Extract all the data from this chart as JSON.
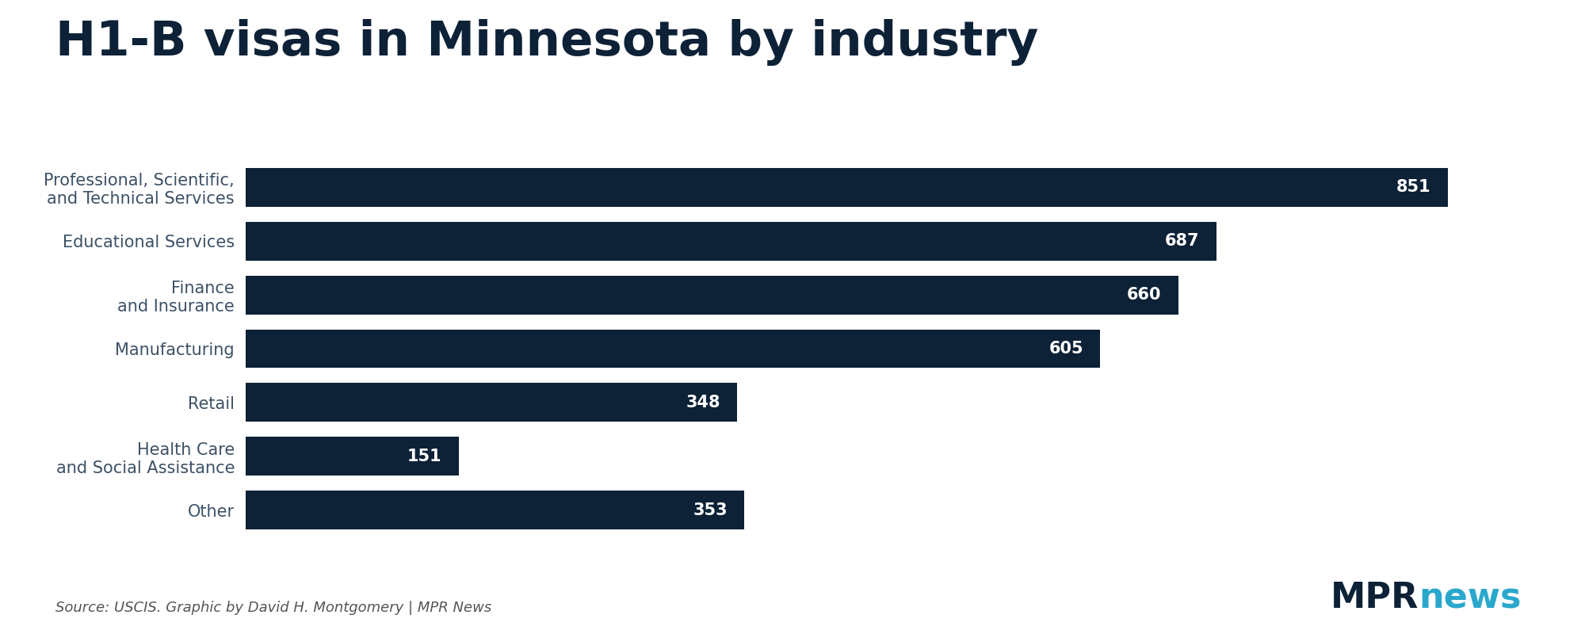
{
  "title": "H1-B visas in Minnesota by industry",
  "categories": [
    "Professional, Scientific,\nand Technical Services",
    "Educational Services",
    "Finance\nand Insurance",
    "Manufacturing",
    "Retail",
    "Health Care\nand Social Assistance",
    "Other"
  ],
  "values": [
    851,
    687,
    660,
    605,
    348,
    151,
    353
  ],
  "bar_color": "#0d2137",
  "value_color": "#ffffff",
  "title_color": "#0d2137",
  "label_color": "#3d5166",
  "background_color": "#ffffff",
  "source_text": "Source: USCIS. Graphic by David H. Montgomery | MPR News",
  "mpr_text": "MPR",
  "news_text": "news",
  "mpr_color": "#0d2137",
  "news_color": "#2aa8cc",
  "xlim": [
    0,
    920
  ],
  "title_fontsize": 44,
  "label_fontsize": 15,
  "value_fontsize": 15,
  "source_fontsize": 13,
  "mpr_fontsize": 32,
  "bar_height": 0.72
}
